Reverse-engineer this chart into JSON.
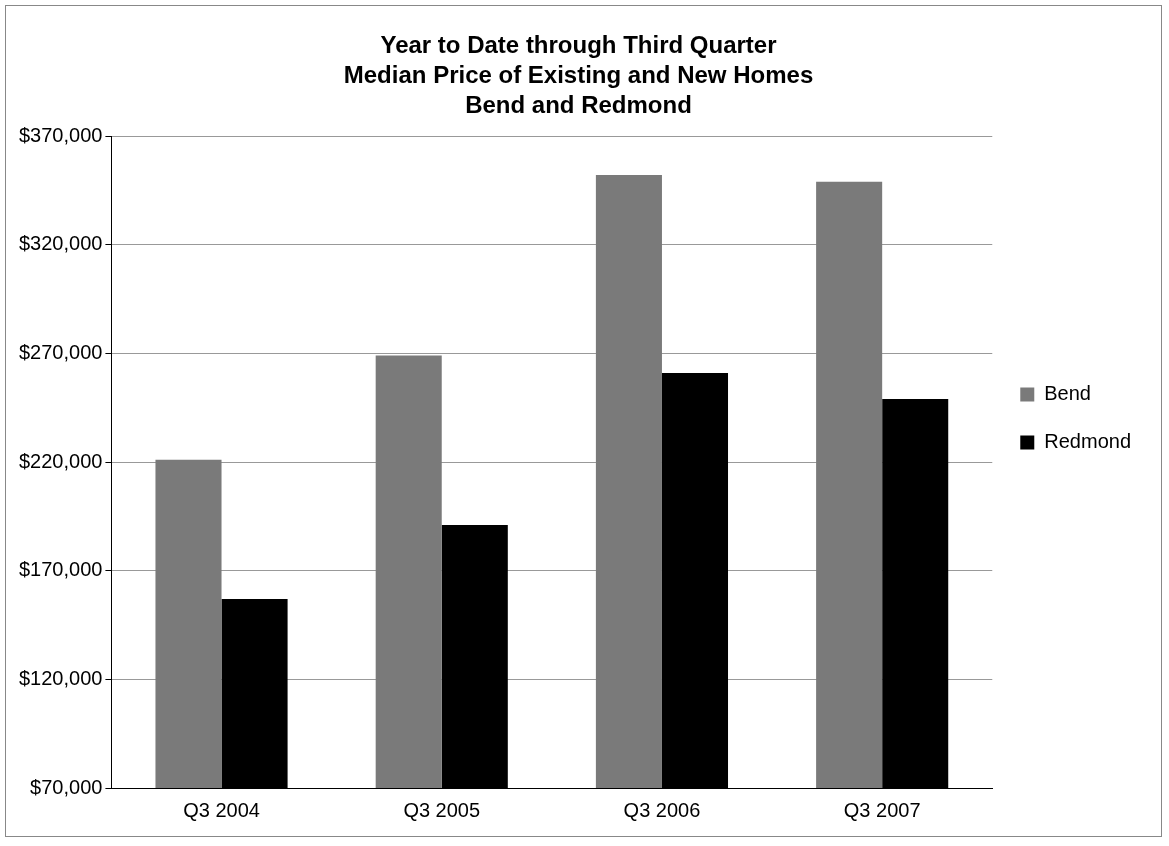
{
  "chart_data": {
    "type": "bar",
    "title": "Year to Date through Third Quarter\nMedian Price of Existing and New Homes\nBend and Redmond",
    "categories": [
      "Q3 2004",
      "Q3 2005",
      "Q3 2006",
      "Q3 2007"
    ],
    "series": [
      {
        "name": "Bend",
        "color": "#7a7a7a",
        "values": [
          221000,
          269000,
          352000,
          349000
        ]
      },
      {
        "name": "Redmond",
        "color": "#000000",
        "values": [
          157000,
          191000,
          261000,
          249000
        ]
      }
    ],
    "ylim": [
      70000,
      370000
    ],
    "yticks": [
      {
        "value": 70000,
        "label": "$70,000"
      },
      {
        "value": 120000,
        "label": "$120,000"
      },
      {
        "value": 170000,
        "label": "$170,000"
      },
      {
        "value": 220000,
        "label": "$220,000"
      },
      {
        "value": 270000,
        "label": "$270,000"
      },
      {
        "value": 320000,
        "label": "$320,000"
      },
      {
        "value": 370000,
        "label": "$370,000"
      }
    ],
    "grid": "y",
    "legend": "right"
  }
}
